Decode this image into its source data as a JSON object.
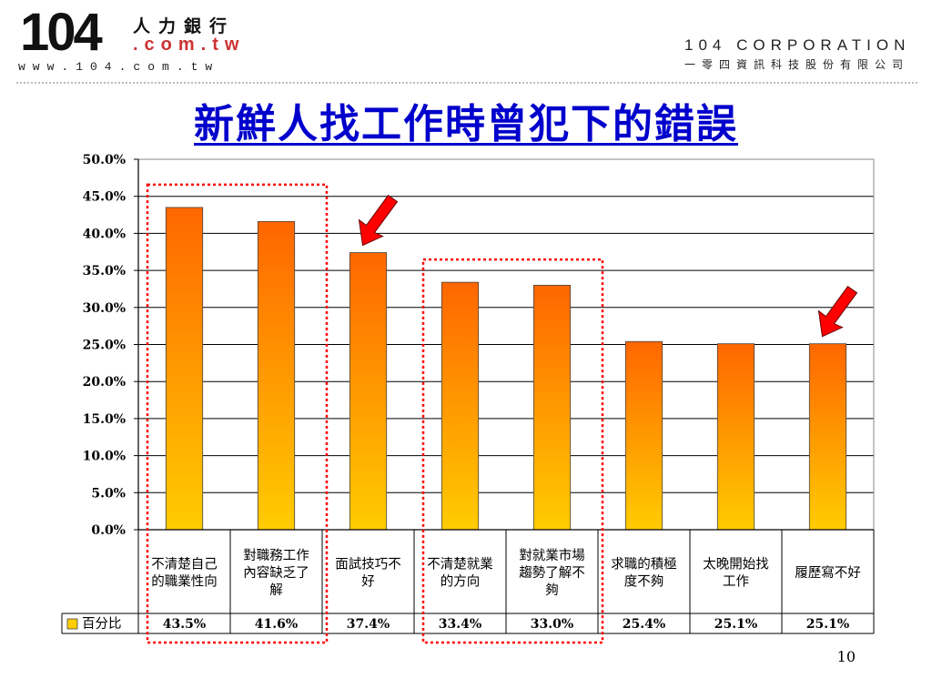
{
  "header": {
    "logo_number": "104",
    "logo_chinese": "人力銀行",
    "logo_domain": ".com.tw",
    "logo_url": "www.104.com.tw",
    "corp_name": "104 CORPORATION",
    "corp_chinese": "一零四資訊科技股份有限公司"
  },
  "slide": {
    "title": "新鮮人找工作時曾犯下的錯誤",
    "page_number": "10"
  },
  "chart_data": {
    "type": "bar",
    "categories": [
      [
        "不清楚自己",
        "的職業性向"
      ],
      [
        "對職務工作",
        "內容缺乏了",
        "解"
      ],
      [
        "面試技巧不",
        "好"
      ],
      [
        "不清楚就業",
        "的方向"
      ],
      [
        "對就業市場",
        "趨勢了解不",
        "夠"
      ],
      [
        "求職的積極",
        "度不夠"
      ],
      [
        "太晚開始找",
        "工作"
      ],
      [
        "履歷寫不好"
      ]
    ],
    "series": [
      {
        "name": "百分比",
        "values": [
          43.5,
          41.6,
          37.4,
          33.4,
          33.0,
          25.4,
          25.1,
          25.1
        ],
        "labels": [
          "43.5%",
          "41.6%",
          "37.4%",
          "33.4%",
          "33.0%",
          "25.4%",
          "25.1%",
          "25.1%"
        ]
      }
    ],
    "ylim": [
      0,
      50
    ],
    "yticks": [
      "0.0%",
      "5.0%",
      "10.0%",
      "15.0%",
      "20.0%",
      "25.0%",
      "30.0%",
      "35.0%",
      "40.0%",
      "45.0%",
      "50.0%"
    ],
    "grid": true,
    "bar_gradient": [
      "#ff6600",
      "#ffcc00"
    ],
    "legend": "data-table",
    "highlight_groups": [
      [
        0,
        1
      ],
      [
        3,
        4
      ]
    ],
    "highlight_color": "#ff0000",
    "arrow_marks": [
      2,
      7
    ],
    "arrow_color": "#ff0000"
  }
}
